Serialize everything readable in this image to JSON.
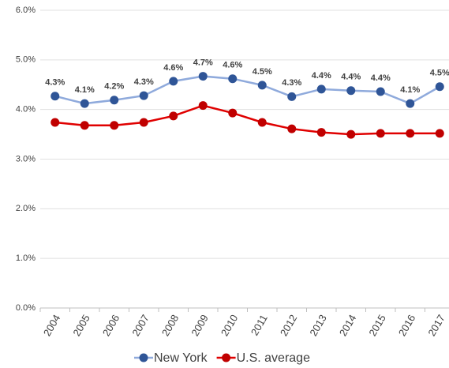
{
  "chart_data": {
    "type": "line",
    "categories": [
      "2004",
      "2005",
      "2006",
      "2007",
      "2008",
      "2009",
      "2010",
      "2011",
      "2012",
      "2013",
      "2014",
      "2015",
      "2016",
      "2017"
    ],
    "series": [
      {
        "name": "New York",
        "color": "#2f5597",
        "line_color": "#8faadc",
        "values": [
          4.27,
          4.12,
          4.19,
          4.28,
          4.57,
          4.67,
          4.62,
          4.49,
          4.26,
          4.41,
          4.38,
          4.36,
          4.12,
          4.46
        ],
        "value_labels": [
          "4.3%",
          "4.1%",
          "4.2%",
          "4.3%",
          "4.6%",
          "4.7%",
          "4.6%",
          "4.5%",
          "4.3%",
          "4.4%",
          "4.4%",
          "4.4%",
          "4.1%",
          "4.5%"
        ]
      },
      {
        "name": "U.S. average",
        "color": "#c00000",
        "line_color": "#e00000",
        "values": [
          3.74,
          3.68,
          3.68,
          3.74,
          3.87,
          4.08,
          3.93,
          3.74,
          3.61,
          3.54,
          3.5,
          3.52,
          3.52,
          3.52
        ]
      }
    ],
    "ylim": [
      0,
      6
    ],
    "yticks": [
      {
        "value": 0,
        "label": "0.0%"
      },
      {
        "value": 1,
        "label": "1.0%"
      },
      {
        "value": 2,
        "label": "2.0%"
      },
      {
        "value": 3,
        "label": "3.0%"
      },
      {
        "value": 4,
        "label": "4.0%"
      },
      {
        "value": 5,
        "label": "5.0%"
      },
      {
        "value": 6,
        "label": "6.0%"
      }
    ],
    "grid": true,
    "legend": "bottom"
  }
}
